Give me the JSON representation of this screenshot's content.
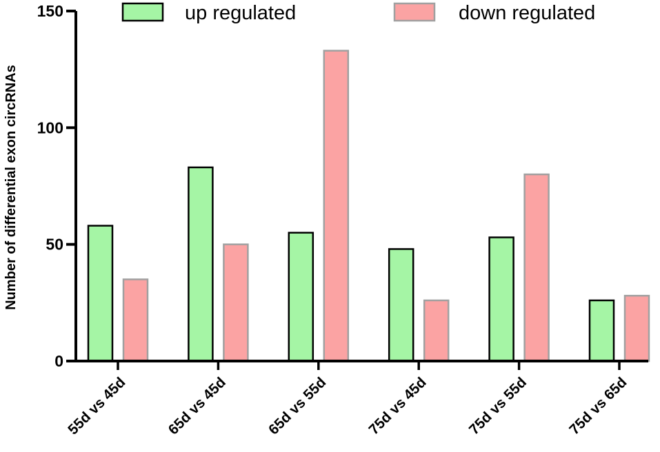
{
  "chart_data": {
    "type": "bar",
    "title": "",
    "xlabel": "",
    "ylabel": "Number of differential exon circRNAs",
    "categories": [
      "55d vs 45d",
      "65d vs 45d",
      "65d vs 55d",
      "75d vs 45d",
      "75d vs 55d",
      "75d vs 65d"
    ],
    "series": [
      {
        "name": "up regulated",
        "color": "#a5f5a5",
        "stroke": "#000000",
        "values": [
          58,
          83,
          55,
          48,
          53,
          26
        ]
      },
      {
        "name": "down regulated",
        "color": "#fba3a3",
        "stroke": "#a0a0a0",
        "values": [
          35,
          50,
          133,
          26,
          80,
          28
        ]
      }
    ],
    "ylim": [
      0,
      150
    ],
    "yticks": [
      0,
      50,
      100,
      150
    ],
    "grid": false,
    "legend_position": "top"
  }
}
